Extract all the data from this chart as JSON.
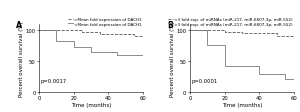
{
  "panel_A": {
    "title": "A",
    "xlabel": "Time (months)",
    "ylabel": "Percent overall survival (%)",
    "pvalue": "p=0.0017",
    "ylim": [
      0,
      110
    ],
    "xlim": [
      0,
      60
    ],
    "xticks": [
      0,
      20,
      40,
      60
    ],
    "yticks": [
      0,
      50,
      100
    ],
    "legend_high": ">Mean fold expression of DACH1",
    "legend_low": "<Mean fold expression of DACH1",
    "high_x": [
      0,
      25,
      25,
      35,
      35,
      55,
      55,
      60
    ],
    "high_y": [
      100,
      100,
      97,
      97,
      94,
      94,
      91,
      91
    ],
    "low_x": [
      0,
      10,
      10,
      20,
      20,
      30,
      30,
      45,
      45,
      60
    ],
    "low_y": [
      100,
      100,
      82,
      82,
      73,
      73,
      65,
      65,
      60,
      60
    ]
  },
  "panel_B": {
    "title": "B",
    "xlabel": "Time (months)",
    "ylabel": "Percent overall survival (%)",
    "pvalue": "p=0.0001",
    "ylim": [
      0,
      110
    ],
    "xlim": [
      0,
      60
    ],
    "xticks": [
      0,
      20,
      40,
      60
    ],
    "yticks": [
      0,
      50,
      100
    ],
    "legend_high": "<3 fold exp. of miRNAs (miR-217, miR-6807-3p, miR-552)",
    "legend_low": ">3 fold exp. of miRNAs (miR-217, miR-6807-3p, miR-552)",
    "high_x": [
      0,
      20,
      20,
      30,
      30,
      50,
      50,
      60
    ],
    "high_y": [
      100,
      100,
      97,
      97,
      95,
      95,
      91,
      91
    ],
    "low_x": [
      0,
      10,
      10,
      20,
      20,
      40,
      40,
      55,
      55,
      60
    ],
    "low_y": [
      100,
      100,
      75,
      75,
      42,
      42,
      28,
      28,
      20,
      20
    ]
  },
  "line_color_high": "#555555",
  "line_color_low": "#777777",
  "background": "#ffffff",
  "fontsize_label": 4.0,
  "fontsize_tick": 3.8,
  "fontsize_legend": 3.0,
  "fontsize_pvalue": 3.8,
  "fontsize_title": 5.5
}
